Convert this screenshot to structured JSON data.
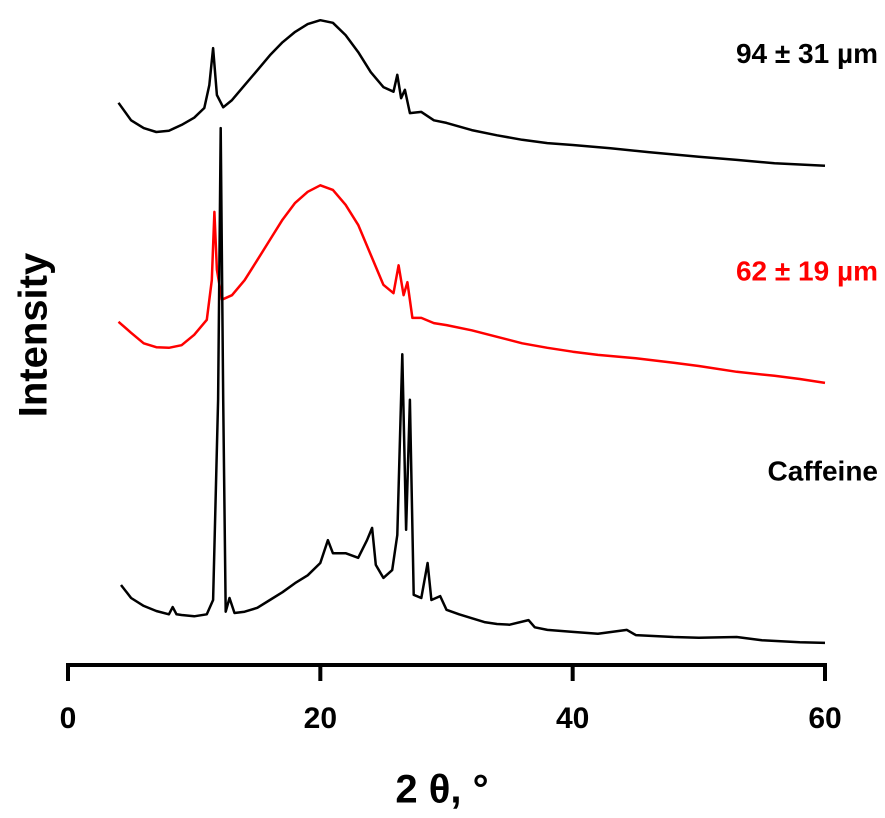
{
  "chart_data": {
    "type": "line",
    "x_label": "2 θ, °",
    "y_label": "Intensity",
    "xlim": [
      0,
      60
    ],
    "xticks": [
      0,
      20,
      40,
      60
    ],
    "ylim": [
      0,
      100
    ],
    "grid": false,
    "series": [
      {
        "name": "94 ± 31 µm",
        "color": "#000000",
        "x": [
          4,
          5,
          6,
          7,
          8,
          9,
          10,
          10.8,
          11.2,
          11.5,
          11.8,
          12.3,
          13,
          14,
          15,
          16,
          17,
          18,
          19,
          20,
          21,
          22,
          23,
          24,
          25,
          25.8,
          26.1,
          26.4,
          26.7,
          27.1,
          28,
          29,
          30,
          32,
          34,
          36,
          38,
          40,
          43,
          46,
          50,
          53,
          56,
          60
        ],
        "values": [
          86.5,
          83.8,
          82.6,
          82,
          82.2,
          83.1,
          84.2,
          85.7,
          89.2,
          94.9,
          87.7,
          85.8,
          86.9,
          89.2,
          91.5,
          93.8,
          95.8,
          97.4,
          98.6,
          99.2,
          98.8,
          96.9,
          94.3,
          91.2,
          88.9,
          88.2,
          90.8,
          87.2,
          88.5,
          84.9,
          85.1,
          83.8,
          83.4,
          82.3,
          81.5,
          80.8,
          80.3,
          80,
          79.5,
          78.9,
          78.2,
          77.7,
          77.2,
          76.8
        ]
      },
      {
        "name": "62 ± 19 µm",
        "color": "#ff0000",
        "x": [
          4,
          5,
          6,
          7,
          8,
          9,
          10,
          11,
          11.4,
          11.6,
          11.8,
          12.2,
          13,
          14,
          15,
          16,
          17,
          18,
          19,
          20,
          21,
          22,
          23,
          24,
          25,
          25.8,
          26.2,
          26.6,
          26.9,
          27.3,
          28,
          29,
          30,
          32,
          34,
          36,
          38,
          40,
          42,
          45,
          48,
          50,
          53,
          56,
          58,
          60
        ],
        "values": [
          52.8,
          51.1,
          49.5,
          48.9,
          48.8,
          49.2,
          50.8,
          53.1,
          59.2,
          69.7,
          60.8,
          56.2,
          56.9,
          59.2,
          62.3,
          65.4,
          68.5,
          71.1,
          72.8,
          73.8,
          73.1,
          70.8,
          67.7,
          63.1,
          58.5,
          57.2,
          61.5,
          56.9,
          58.9,
          53.4,
          53.4,
          52.6,
          52.3,
          51.5,
          50.5,
          49.5,
          48.8,
          48.2,
          47.7,
          47.2,
          46.5,
          46,
          45.1,
          44.5,
          44,
          43.4
        ]
      },
      {
        "name": "Caffeine",
        "color": "#000000",
        "x": [
          4.2,
          5,
          6,
          7,
          8,
          8.3,
          8.6,
          9,
          10,
          11,
          11.5,
          11.9,
          12.1,
          12.3,
          12.5,
          12.8,
          13.2,
          14,
          15,
          16,
          17,
          18,
          19,
          20,
          20.6,
          21,
          22,
          23,
          23.7,
          24.1,
          24.4,
          25,
          25.7,
          26.1,
          26.5,
          26.8,
          27.1,
          27.4,
          28,
          28.5,
          28.8,
          29.5,
          30,
          31,
          32,
          33,
          34,
          35,
          36.5,
          37,
          38,
          40,
          42,
          44.3,
          45,
          48,
          50,
          53,
          55,
          58,
          60
        ],
        "values": [
          12.3,
          10.3,
          9.1,
          8.3,
          7.8,
          8.9,
          7.8,
          7.7,
          7.5,
          7.8,
          10,
          40.8,
          82.6,
          40.8,
          8.2,
          10.3,
          8,
          8.2,
          8.8,
          10,
          11.2,
          12.6,
          13.8,
          15.7,
          19.2,
          17.2,
          17.2,
          16.5,
          19.2,
          21.1,
          15.4,
          13.4,
          14.6,
          20,
          47.8,
          20.8,
          40.8,
          10.8,
          10.3,
          15.7,
          10,
          10.6,
          8.5,
          7.8,
          7.2,
          6.6,
          6.3,
          6.2,
          6.9,
          5.8,
          5.4,
          5.1,
          4.8,
          5.4,
          4.6,
          4.3,
          4.2,
          4.3,
          3.8,
          3.5,
          3.4
        ]
      }
    ]
  }
}
